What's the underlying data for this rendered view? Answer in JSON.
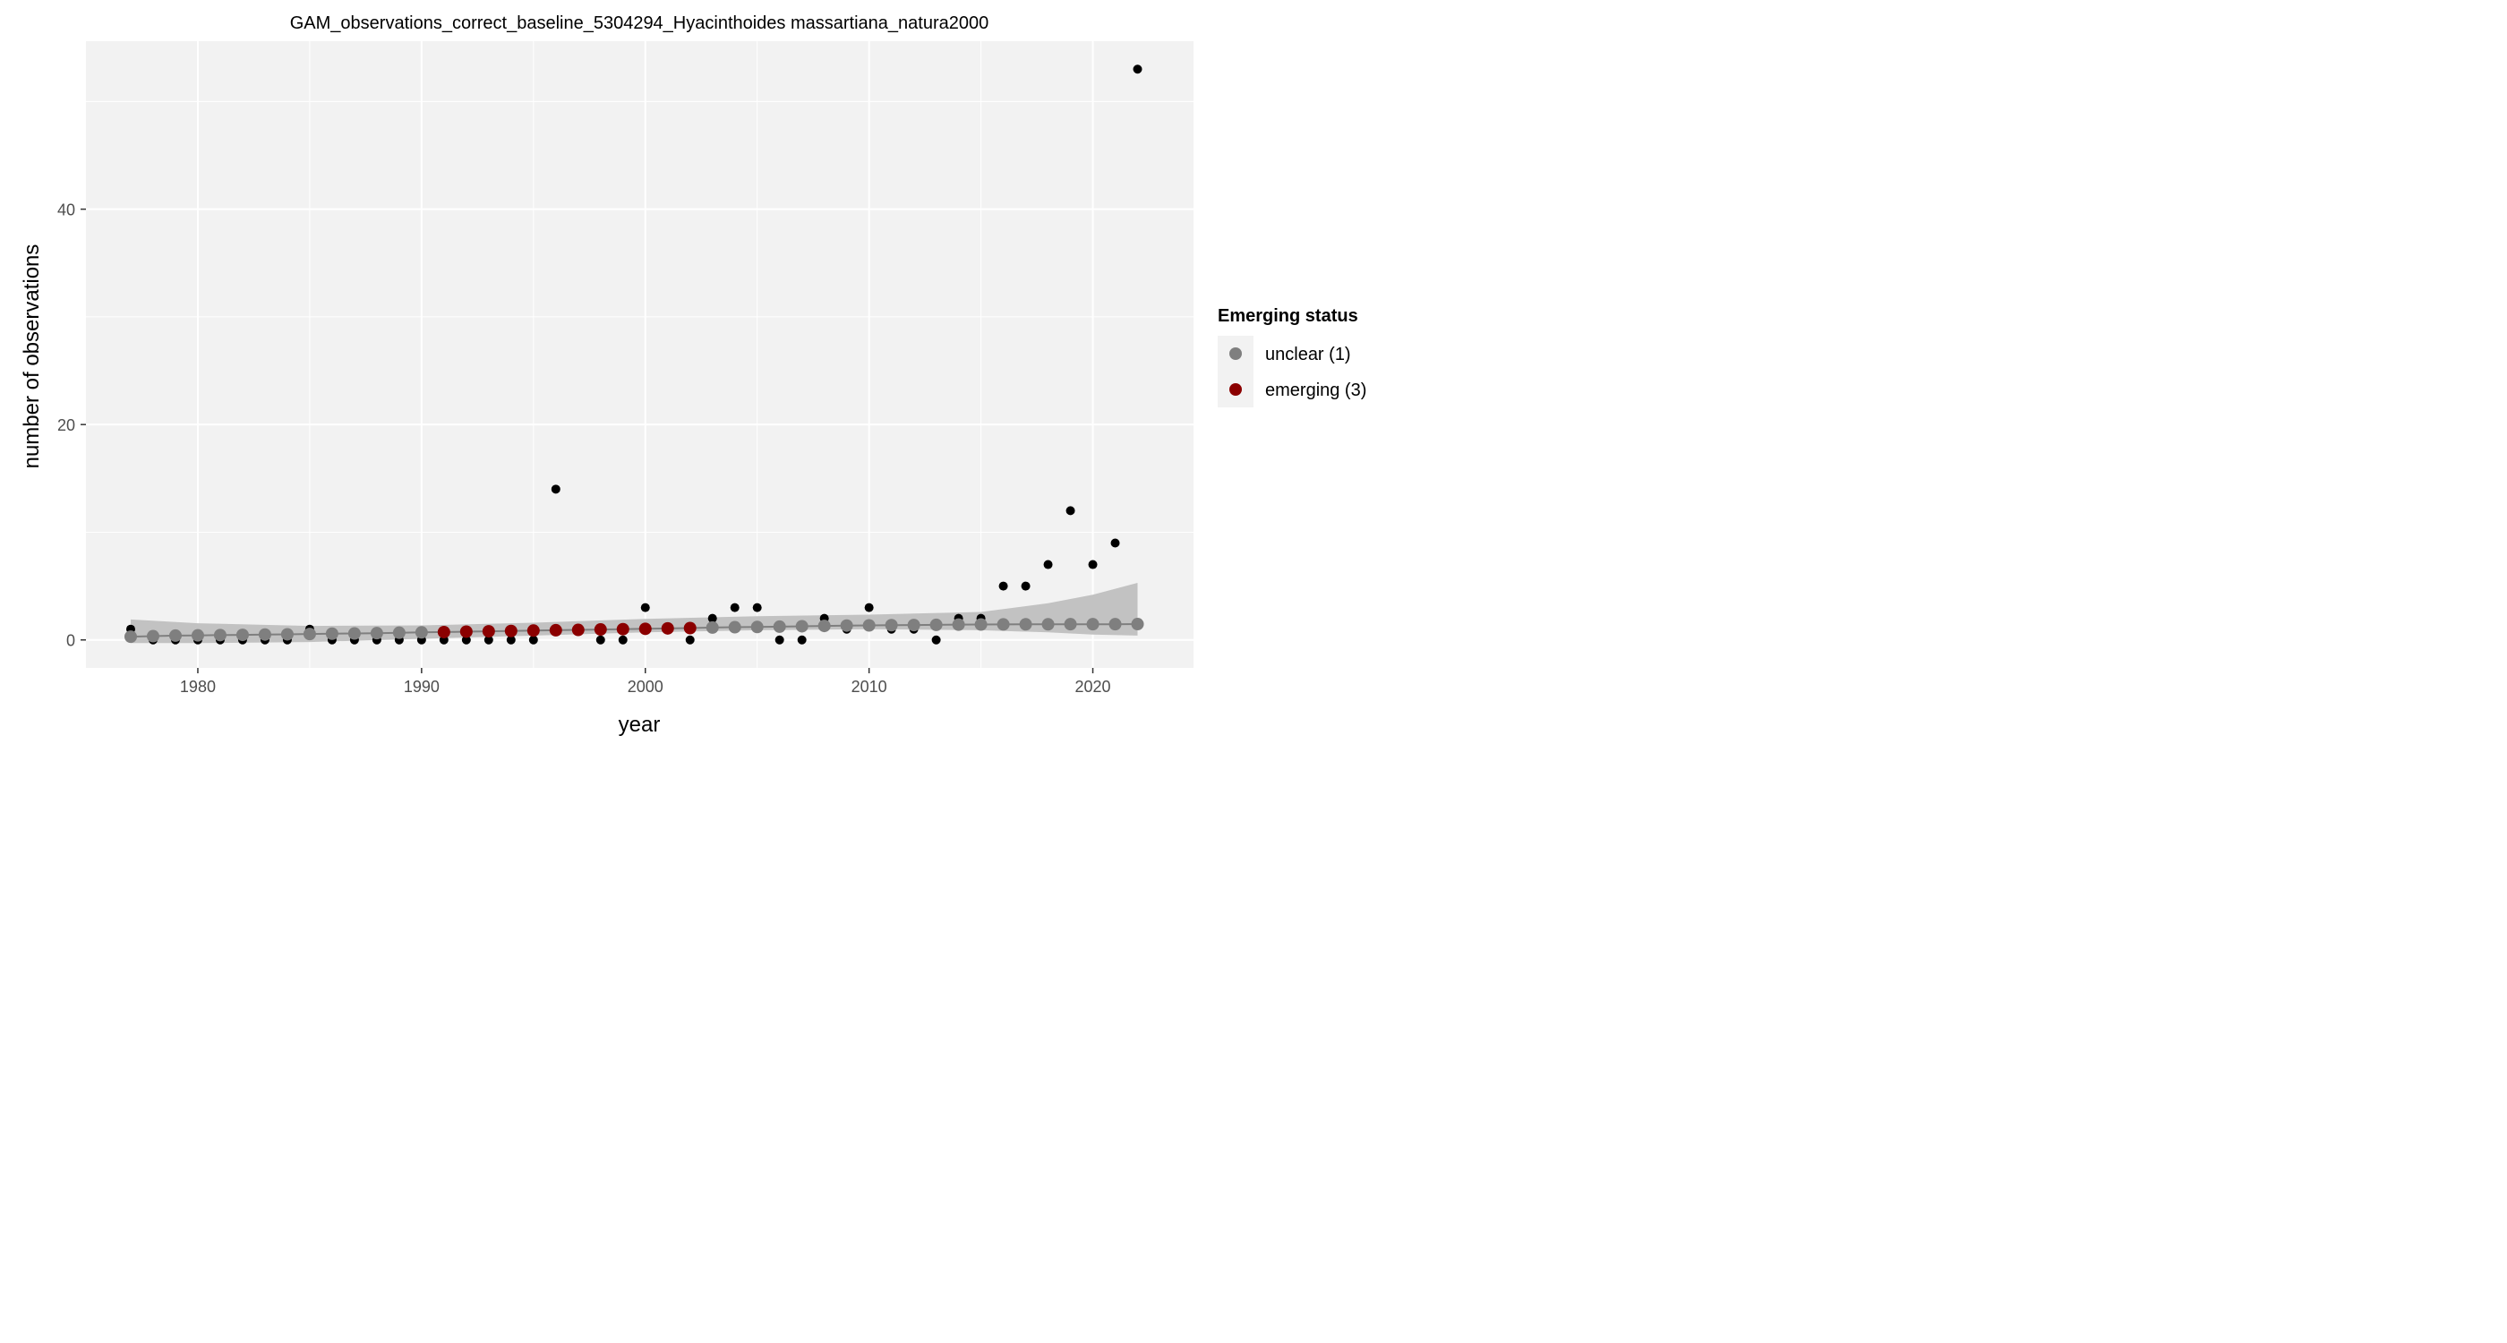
{
  "chart_data": {
    "type": "scatter",
    "title": "GAM_observations_correct_baseline_5304294_Hyacinthoides massartiana_natura2000",
    "xlabel": "year",
    "ylabel": "number of observations",
    "xlim": [
      1975,
      2024.5
    ],
    "ylim": [
      -2.6,
      55.6
    ],
    "x_ticks": [
      1980,
      1990,
      2000,
      2010,
      2020
    ],
    "y_ticks": [
      0,
      20,
      40
    ],
    "grid": true,
    "legend": {
      "title": "Emerging status",
      "placement": "right",
      "entries": [
        {
          "label": "unclear (1)",
          "color": "#7f7f7f"
        },
        {
          "label": "emerging (3)",
          "color": "#8b0000"
        }
      ]
    },
    "observed": {
      "color": "#000000",
      "x": [
        1977,
        1978,
        1979,
        1980,
        1981,
        1982,
        1983,
        1984,
        1985,
        1986,
        1987,
        1988,
        1989,
        1990,
        1991,
        1992,
        1993,
        1994,
        1995,
        1996,
        1997,
        1998,
        1999,
        2000,
        2001,
        2002,
        2003,
        2004,
        2005,
        2006,
        2007,
        2008,
        2009,
        2010,
        2011,
        2012,
        2013,
        2014,
        2015,
        2016,
        2017,
        2018,
        2019,
        2020,
        2021,
        2022
      ],
      "y": [
        1,
        0,
        0,
        0,
        0,
        0,
        0,
        0,
        1,
        0,
        0,
        0,
        0,
        0,
        0,
        0,
        0,
        0,
        0,
        14,
        1,
        0,
        0,
        3,
        1,
        0,
        2,
        3,
        3,
        0,
        0,
        2,
        1,
        3,
        1,
        1,
        0,
        2,
        2,
        5,
        5,
        7,
        12,
        7,
        9,
        53
      ]
    },
    "fitted": {
      "x": [
        1977,
        1978,
        1979,
        1980,
        1981,
        1982,
        1983,
        1984,
        1985,
        1986,
        1987,
        1988,
        1989,
        1990,
        1991,
        1992,
        1993,
        1994,
        1995,
        1996,
        1997,
        1998,
        1999,
        2000,
        2001,
        2002,
        2003,
        2004,
        2005,
        2006,
        2007,
        2008,
        2009,
        2010,
        2011,
        2012,
        2013,
        2014,
        2015,
        2016,
        2017,
        2018,
        2019,
        2020,
        2021,
        2022
      ],
      "y": [
        0.3,
        0.35,
        0.4,
        0.42,
        0.45,
        0.47,
        0.5,
        0.52,
        0.55,
        0.58,
        0.6,
        0.63,
        0.67,
        0.7,
        0.73,
        0.77,
        0.8,
        0.83,
        0.87,
        0.9,
        0.93,
        0.97,
        1.0,
        1.03,
        1.07,
        1.1,
        1.15,
        1.18,
        1.2,
        1.23,
        1.27,
        1.3,
        1.33,
        1.35,
        1.37,
        1.38,
        1.4,
        1.42,
        1.43,
        1.44,
        1.45,
        1.45,
        1.46,
        1.46,
        1.46,
        1.47
      ],
      "status": [
        "unclear (1)",
        "unclear (1)",
        "unclear (1)",
        "unclear (1)",
        "unclear (1)",
        "unclear (1)",
        "unclear (1)",
        "unclear (1)",
        "unclear (1)",
        "unclear (1)",
        "unclear (1)",
        "unclear (1)",
        "unclear (1)",
        "unclear (1)",
        "emerging (3)",
        "emerging (3)",
        "emerging (3)",
        "emerging (3)",
        "emerging (3)",
        "emerging (3)",
        "emerging (3)",
        "emerging (3)",
        "emerging (3)",
        "emerging (3)",
        "emerging (3)",
        "emerging (3)",
        "unclear (1)",
        "unclear (1)",
        "unclear (1)",
        "unclear (1)",
        "unclear (1)",
        "unclear (1)",
        "unclear (1)",
        "unclear (1)",
        "unclear (1)",
        "unclear (1)",
        "unclear (1)",
        "unclear (1)",
        "unclear (1)",
        "unclear (1)",
        "unclear (1)",
        "unclear (1)",
        "unclear (1)",
        "unclear (1)",
        "unclear (1)",
        "unclear (1)"
      ]
    },
    "confidence_band": {
      "color": "#bfbfbf",
      "x": [
        1977,
        1980,
        1985,
        1990,
        1995,
        2000,
        2005,
        2010,
        2015,
        2018,
        2020,
        2022
      ],
      "lower": [
        -0.3,
        -0.3,
        -0.2,
        0.1,
        0.4,
        0.7,
        0.9,
        1.0,
        0.9,
        0.7,
        0.5,
        0.4
      ],
      "upper": [
        1.9,
        1.55,
        1.3,
        1.35,
        1.6,
        1.95,
        2.2,
        2.35,
        2.6,
        3.4,
        4.2,
        5.3
      ]
    }
  }
}
